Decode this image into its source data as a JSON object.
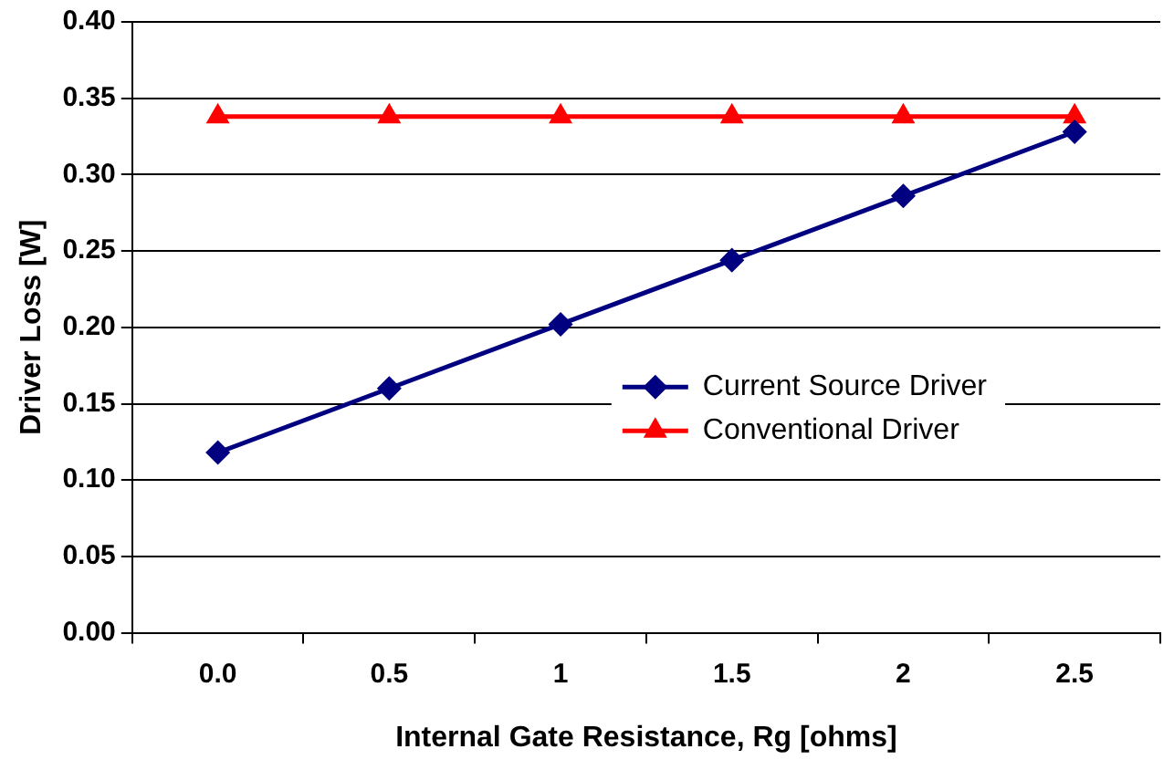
{
  "chart_data": {
    "type": "line",
    "xlabel": "Internal Gate Resistance, Rg [ohms]",
    "ylabel": "Driver Loss [W]",
    "categories": [
      "0.0",
      "0.5",
      "1",
      "1.5",
      "2",
      "2.5"
    ],
    "series": [
      {
        "name": "Current Source Driver",
        "color": "#000080",
        "marker": "diamond",
        "values": [
          0.118,
          0.16,
          0.202,
          0.244,
          0.286,
          0.328
        ]
      },
      {
        "name": "Conventional Driver",
        "color": "#ff0000",
        "marker": "triangle",
        "values": [
          0.338,
          0.338,
          0.338,
          0.338,
          0.338,
          0.338
        ]
      }
    ],
    "ylim": [
      0,
      0.4
    ],
    "yticks": [
      {
        "value": 0,
        "label": "0.00"
      },
      {
        "value": 0.05,
        "label": "0.05"
      },
      {
        "value": 0.1,
        "label": "0.10"
      },
      {
        "value": 0.15,
        "label": "0.15"
      },
      {
        "value": 0.2,
        "label": "0.20"
      },
      {
        "value": 0.25,
        "label": "0.25"
      },
      {
        "value": 0.3,
        "label": "0.30"
      },
      {
        "value": 0.35,
        "label": "0.35"
      },
      {
        "value": 0.4,
        "label": "0.40"
      }
    ],
    "grid": "y",
    "legend": "right",
    "line_style": "solid"
  }
}
